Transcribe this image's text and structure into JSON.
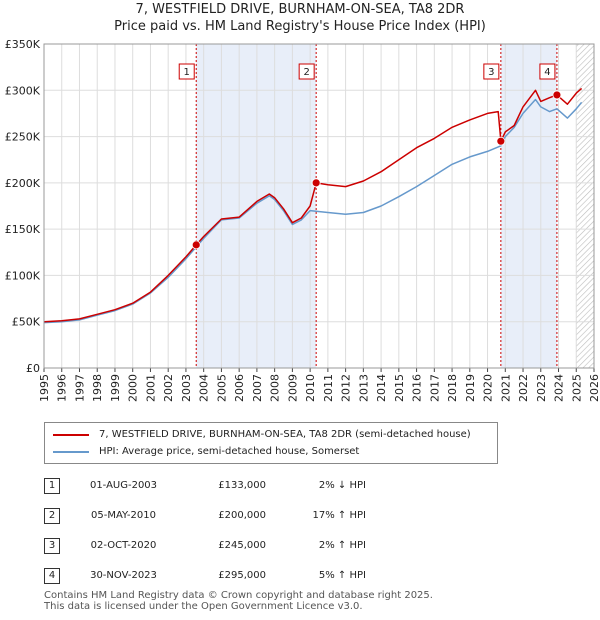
{
  "chart_data": {
    "type": "line",
    "title": "7, WESTFIELD DRIVE, BURNHAM-ON-SEA, TA8 2DR",
    "subtitle": "Price paid vs. HM Land Registry's House Price Index (HPI)",
    "xlim": [
      1995,
      2026
    ],
    "ylim": [
      0,
      350000
    ],
    "yticks": [
      0,
      50000,
      100000,
      150000,
      200000,
      250000,
      300000,
      350000
    ],
    "ytick_labels": [
      "£0",
      "£50K",
      "£100K",
      "£150K",
      "£200K",
      "£250K",
      "£300K",
      "£350K"
    ],
    "xticks": [
      "1995",
      "1996",
      "1997",
      "1998",
      "1999",
      "2000",
      "2001",
      "2002",
      "2003",
      "2004",
      "2005",
      "2006",
      "2007",
      "2008",
      "2009",
      "2010",
      "2011",
      "2012",
      "2013",
      "2014",
      "2015",
      "2016",
      "2017",
      "2018",
      "2019",
      "2020",
      "2021",
      "2022",
      "2023",
      "2024",
      "2025",
      "2026"
    ],
    "colors": {
      "property": "#cc0000",
      "hpi": "#6699cc",
      "shade": "#e8eef9",
      "vline": "#cc0000"
    },
    "shaded_ranges": [
      [
        2003.58,
        2010.34
      ],
      [
        2020.75,
        2023.91
      ]
    ],
    "hatch_from": 2025.0,
    "series": [
      {
        "name": "7, WESTFIELD DRIVE, BURNHAM-ON-SEA, TA8 2DR (semi-detached house)",
        "x": [
          1995.0,
          1996.0,
          1997.0,
          1998.0,
          1999.0,
          2000.0,
          2001.0,
          2002.0,
          2003.0,
          2003.58,
          2004.0,
          2005.0,
          2006.0,
          2007.0,
          2007.7,
          2008.0,
          2008.5,
          2009.0,
          2009.5,
          2010.0,
          2010.34,
          2011.0,
          2012.0,
          2013.0,
          2014.0,
          2015.0,
          2016.0,
          2017.0,
          2018.0,
          2019.0,
          2020.0,
          2020.6,
          2020.75,
          2021.0,
          2021.5,
          2022.0,
          2022.7,
          2023.0,
          2023.5,
          2023.91,
          2024.5,
          2025.0,
          2025.3
        ],
        "y": [
          50000,
          51000,
          53000,
          58000,
          63000,
          70000,
          82000,
          100000,
          120000,
          133000,
          142000,
          161000,
          163000,
          180000,
          188000,
          184000,
          172000,
          157000,
          162000,
          175000,
          200000,
          198000,
          196000,
          202000,
          212000,
          225000,
          238000,
          248000,
          260000,
          268000,
          275000,
          277000,
          245000,
          255000,
          262000,
          282000,
          300000,
          288000,
          292000,
          295000,
          285000,
          297000,
          302000
        ]
      },
      {
        "name": "HPI: Average price, semi-detached house, Somerset",
        "x": [
          1995.0,
          1996.0,
          1997.0,
          1998.0,
          1999.0,
          2000.0,
          2001.0,
          2002.0,
          2003.0,
          2004.0,
          2005.0,
          2006.0,
          2007.0,
          2007.7,
          2008.0,
          2008.5,
          2009.0,
          2009.5,
          2010.0,
          2011.0,
          2012.0,
          2013.0,
          2014.0,
          2015.0,
          2016.0,
          2017.0,
          2018.0,
          2019.0,
          2020.0,
          2020.75,
          2021.0,
          2021.5,
          2022.0,
          2022.7,
          2023.0,
          2023.5,
          2023.91,
          2024.5,
          2025.0,
          2025.3
        ],
        "y": [
          49000,
          50000,
          52000,
          57000,
          62000,
          69000,
          81000,
          98000,
          118000,
          140000,
          160000,
          162000,
          178000,
          186000,
          182000,
          170000,
          155000,
          160000,
          170000,
          168000,
          166000,
          168000,
          175000,
          185000,
          196000,
          208000,
          220000,
          228000,
          234000,
          240000,
          250000,
          260000,
          275000,
          290000,
          282000,
          277000,
          280000,
          270000,
          280000,
          287000
        ]
      }
    ],
    "sales": [
      {
        "label": "1",
        "x": 2003.58,
        "y": 133000
      },
      {
        "label": "2",
        "x": 2010.34,
        "y": 200000
      },
      {
        "label": "3",
        "x": 2020.75,
        "y": 245000
      },
      {
        "label": "4",
        "x": 2023.91,
        "y": 295000
      }
    ]
  },
  "legend": {
    "property": "7, WESTFIELD DRIVE, BURNHAM-ON-SEA, TA8 2DR (semi-detached house)",
    "hpi": "HPI: Average price, semi-detached house, Somerset"
  },
  "transactions": [
    {
      "num": "1",
      "date": "01-AUG-2003",
      "price": "£133,000",
      "hpi": "2% ↓ HPI"
    },
    {
      "num": "2",
      "date": "05-MAY-2010",
      "price": "£200,000",
      "hpi": "17% ↑ HPI"
    },
    {
      "num": "3",
      "date": "02-OCT-2020",
      "price": "£245,000",
      "hpi": "2% ↑ HPI"
    },
    {
      "num": "4",
      "date": "30-NOV-2023",
      "price": "£295,000",
      "hpi": "5% ↑ HPI"
    }
  ],
  "footer": {
    "line1": "Contains HM Land Registry data © Crown copyright and database right 2025.",
    "line2": "This data is licensed under the Open Government Licence v3.0."
  }
}
